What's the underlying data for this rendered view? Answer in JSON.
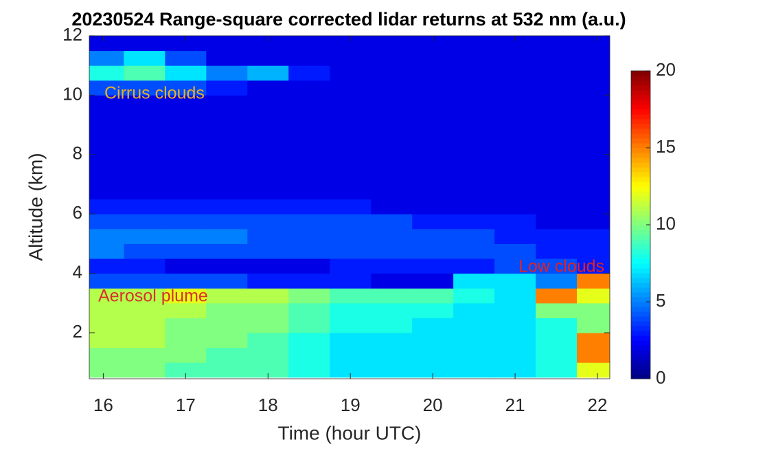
{
  "chart_data": {
    "type": "heatmap",
    "title": "20230524  Range-square corrected lidar returns at 532 nm (a.u.)",
    "x_label": "Time (hour UTC)",
    "y_label": "Altitude (km)",
    "annotations": [
      "Cirrus clouds",
      "Aerosol plume",
      "Low clouds"
    ],
    "annotation_colors": [
      "#edb120",
      "#d9302c",
      "#e8201c"
    ],
    "x": [
      16,
      16.5,
      17,
      17.5,
      18,
      18.5,
      19,
      19.5,
      20,
      20.5,
      21,
      21.5,
      22
    ],
    "y": [
      0.75,
      1.25,
      1.75,
      2.25,
      2.75,
      3.25,
      3.75,
      4.25,
      4.75,
      5.25,
      5.75,
      6.25,
      6.75,
      7.25,
      7.75,
      8.25,
      8.75,
      9.25,
      9.75,
      10.25,
      10.75,
      11.25,
      11.75
    ],
    "z": [
      [
        10,
        10,
        9,
        9,
        9,
        8,
        7,
        7,
        7,
        7,
        7,
        8,
        12
      ],
      [
        10,
        10,
        10,
        9,
        9,
        8,
        7,
        7,
        7,
        7,
        7,
        8,
        15
      ],
      [
        11,
        11,
        10,
        10,
        9,
        8,
        7,
        7,
        7,
        7,
        7,
        8,
        15
      ],
      [
        11,
        11,
        10,
        10,
        10,
        9,
        8,
        8,
        7,
        7,
        7,
        8,
        10
      ],
      [
        11,
        11,
        11,
        10,
        10,
        9,
        8,
        8,
        8,
        7,
        7,
        10,
        10
      ],
      [
        11,
        11,
        12,
        11,
        11,
        10,
        9,
        9,
        9,
        8,
        7,
        15,
        12
      ],
      [
        4,
        4,
        4,
        4,
        3,
        3,
        3,
        2,
        2,
        7,
        7,
        5,
        15
      ],
      [
        3,
        3,
        2,
        2,
        2,
        2,
        3,
        3,
        3,
        3,
        4,
        4,
        3
      ],
      [
        5,
        4,
        4,
        4,
        4,
        4,
        4,
        4,
        4,
        4,
        4,
        3,
        3
      ],
      [
        5,
        5,
        5,
        5,
        4,
        4,
        4,
        4,
        4,
        4,
        3,
        3,
        3
      ],
      [
        4,
        4,
        4,
        4,
        4,
        4,
        4,
        4,
        3,
        3,
        3,
        2,
        2
      ],
      [
        3,
        3,
        3,
        3,
        3,
        3,
        3,
        2,
        2,
        2,
        2,
        2,
        2
      ],
      [
        2,
        2,
        2,
        2,
        2,
        2,
        2,
        2,
        2,
        2,
        2,
        2,
        2
      ],
      [
        2,
        2,
        2,
        2,
        2,
        2,
        2,
        2,
        2,
        2,
        2,
        2,
        2
      ],
      [
        2,
        2,
        2,
        2,
        2,
        2,
        2,
        2,
        2,
        2,
        2,
        2,
        2
      ],
      [
        2,
        2,
        2,
        2,
        2,
        2,
        2,
        2,
        2,
        2,
        2,
        2,
        2
      ],
      [
        2,
        2,
        2,
        2,
        2,
        2,
        2,
        2,
        2,
        2,
        2,
        2,
        2
      ],
      [
        2,
        2,
        2,
        2,
        2,
        2,
        2,
        2,
        2,
        2,
        2,
        2,
        2
      ],
      [
        2,
        2,
        2,
        2,
        2,
        2,
        2,
        2,
        2,
        2,
        2,
        2,
        2
      ],
      [
        4,
        4,
        4,
        3,
        2,
        2,
        2,
        2,
        2,
        2,
        2,
        2,
        2
      ],
      [
        8,
        9,
        7,
        5,
        6,
        3,
        2,
        2,
        2,
        2,
        2,
        2,
        2
      ],
      [
        5,
        7,
        4,
        2,
        2,
        2,
        2,
        2,
        2,
        2,
        2,
        2,
        2
      ],
      [
        2,
        2,
        2,
        2,
        2,
        2,
        2,
        2,
        2,
        2,
        2,
        2,
        2
      ]
    ],
    "xlim": [
      15.83,
      22.15
    ],
    "ylim": [
      0.45,
      12
    ],
    "xticks": [
      16,
      17,
      18,
      19,
      20,
      21,
      22
    ],
    "yticks": [
      2,
      4,
      6,
      8,
      10,
      12
    ],
    "colormap": "jet",
    "clim": [
      0,
      20
    ],
    "colorbar_ticks": [
      0,
      5,
      10,
      15,
      20
    ]
  }
}
